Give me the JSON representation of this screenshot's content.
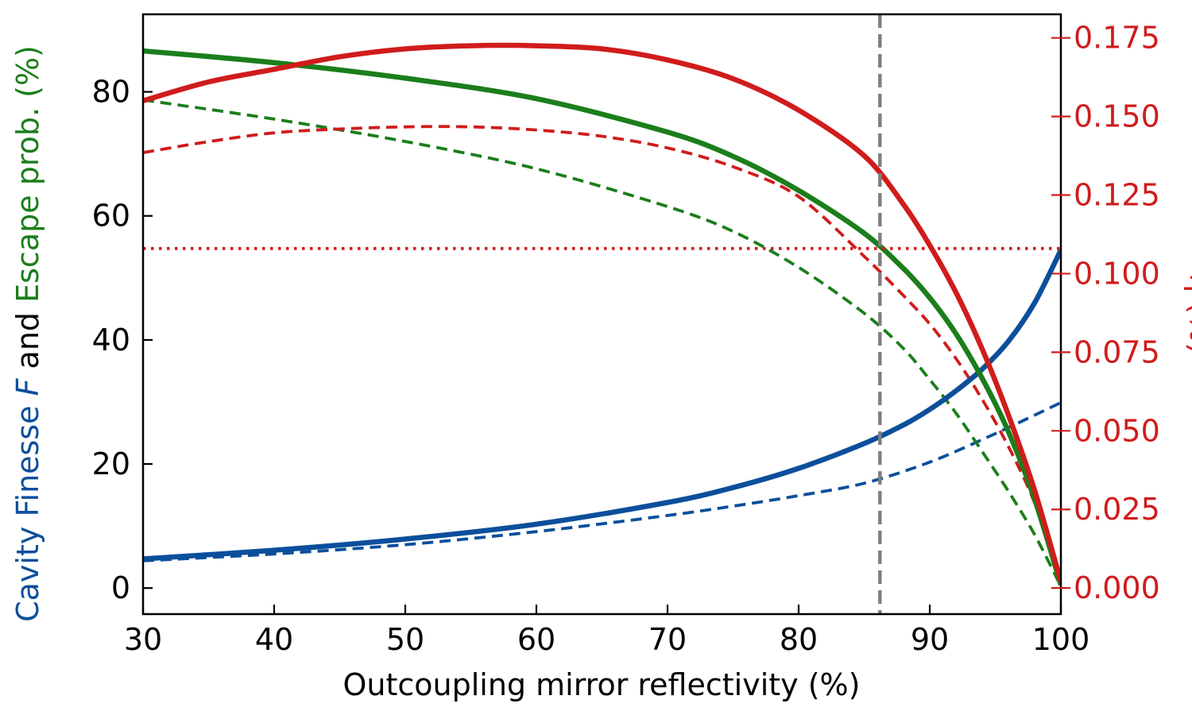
{
  "chart_data": {
    "type": "line",
    "xlabel": "Outcoupling mirror reflectivity (%)",
    "xlim": [
      30,
      100
    ],
    "xticks": [
      "30",
      "40",
      "50",
      "60",
      "70",
      "80",
      "90",
      "100"
    ],
    "ylabel_left": {
      "part1": "Cavity Finesse ",
      "part2": "F",
      "part3": " and ",
      "part4": "Escape prob. (%)"
    },
    "ylim_left": [
      -4.2,
      92.5
    ],
    "yticks_left": [
      "0",
      "20",
      "40",
      "60",
      "80"
    ],
    "ylabel_right": "η (%)",
    "ylim_right": [
      -0.0083,
      0.1825
    ],
    "yticks_right": [
      "0.000",
      "0.025",
      "0.050",
      "0.075",
      "0.100",
      "0.125",
      "0.150",
      "0.175"
    ],
    "vline_x": 86.2,
    "hline_right_y": 0.108,
    "colors": {
      "finesse": "#0b4f9b",
      "escape": "#1b7e1b",
      "eta": "#d01c1c",
      "vline": "#808080",
      "axis": "#000000"
    },
    "series": [
      {
        "key": "finesse_solid",
        "axis": "left",
        "color": "#0b4f9b",
        "style": "solid",
        "x": [
          30,
          40,
          50,
          60,
          70,
          75,
          80,
          85,
          88,
          90,
          92,
          94,
          96,
          98,
          100
        ],
        "y": [
          4.7,
          6.1,
          7.9,
          10.3,
          13.8,
          16.2,
          19.3,
          23.3,
          26.3,
          28.8,
          31.8,
          35.3,
          39.8,
          46.0,
          54.5
        ]
      },
      {
        "key": "finesse_dashed",
        "axis": "left",
        "color": "#0b4f9b",
        "style": "dashed",
        "x": [
          30,
          40,
          50,
          60,
          70,
          75,
          80,
          85,
          90,
          95,
          100
        ],
        "y": [
          4.4,
          5.5,
          7.0,
          9.1,
          11.7,
          13.2,
          14.9,
          16.9,
          20.3,
          24.9,
          29.9
        ]
      },
      {
        "key": "escape_solid",
        "axis": "left",
        "color": "#1b7e1b",
        "style": "solid",
        "x": [
          30,
          40,
          50,
          60,
          70,
          75,
          80,
          85,
          88,
          90,
          92,
          94,
          96,
          98,
          100
        ],
        "y": [
          86.6,
          84.7,
          82.2,
          78.9,
          73.5,
          69.6,
          64.1,
          57.2,
          51.5,
          46.8,
          41.0,
          33.8,
          25.2,
          14.3,
          0.5
        ]
      },
      {
        "key": "escape_dashed",
        "axis": "left",
        "color": "#1b7e1b",
        "style": "dashed",
        "x": [
          30,
          40,
          50,
          60,
          70,
          75,
          80,
          85,
          88,
          90,
          92,
          94,
          96,
          98,
          100
        ],
        "y": [
          78.7,
          75.6,
          72.0,
          67.6,
          61.5,
          57.5,
          51.7,
          44.3,
          38.6,
          33.6,
          28.2,
          22.0,
          15.6,
          8.6,
          0.3
        ]
      },
      {
        "key": "eta_solid",
        "axis": "right",
        "color": "#d01c1c",
        "style": "solid",
        "x": [
          30,
          35,
          40,
          45,
          50,
          55,
          60,
          65,
          70,
          75,
          80,
          85,
          88,
          90,
          92,
          94,
          96,
          98,
          100
        ],
        "y": [
          0.155,
          0.161,
          0.165,
          0.169,
          0.1715,
          0.1725,
          0.1725,
          0.1715,
          0.168,
          0.162,
          0.152,
          0.1375,
          0.122,
          0.109,
          0.094,
          0.076,
          0.055,
          0.031,
          0.002
        ]
      },
      {
        "key": "eta_dashed",
        "axis": "right",
        "color": "#d01c1c",
        "style": "dashed",
        "x": [
          30,
          35,
          40,
          45,
          50,
          55,
          60,
          65,
          70,
          75,
          80,
          85,
          88,
          90,
          92,
          94,
          96,
          98,
          100
        ],
        "y": [
          0.1385,
          0.142,
          0.1448,
          0.146,
          0.1467,
          0.1467,
          0.1457,
          0.1437,
          0.14,
          0.134,
          0.1245,
          0.1055,
          0.093,
          0.084,
          0.073,
          0.06,
          0.045,
          0.027,
          0.002
        ]
      }
    ]
  }
}
